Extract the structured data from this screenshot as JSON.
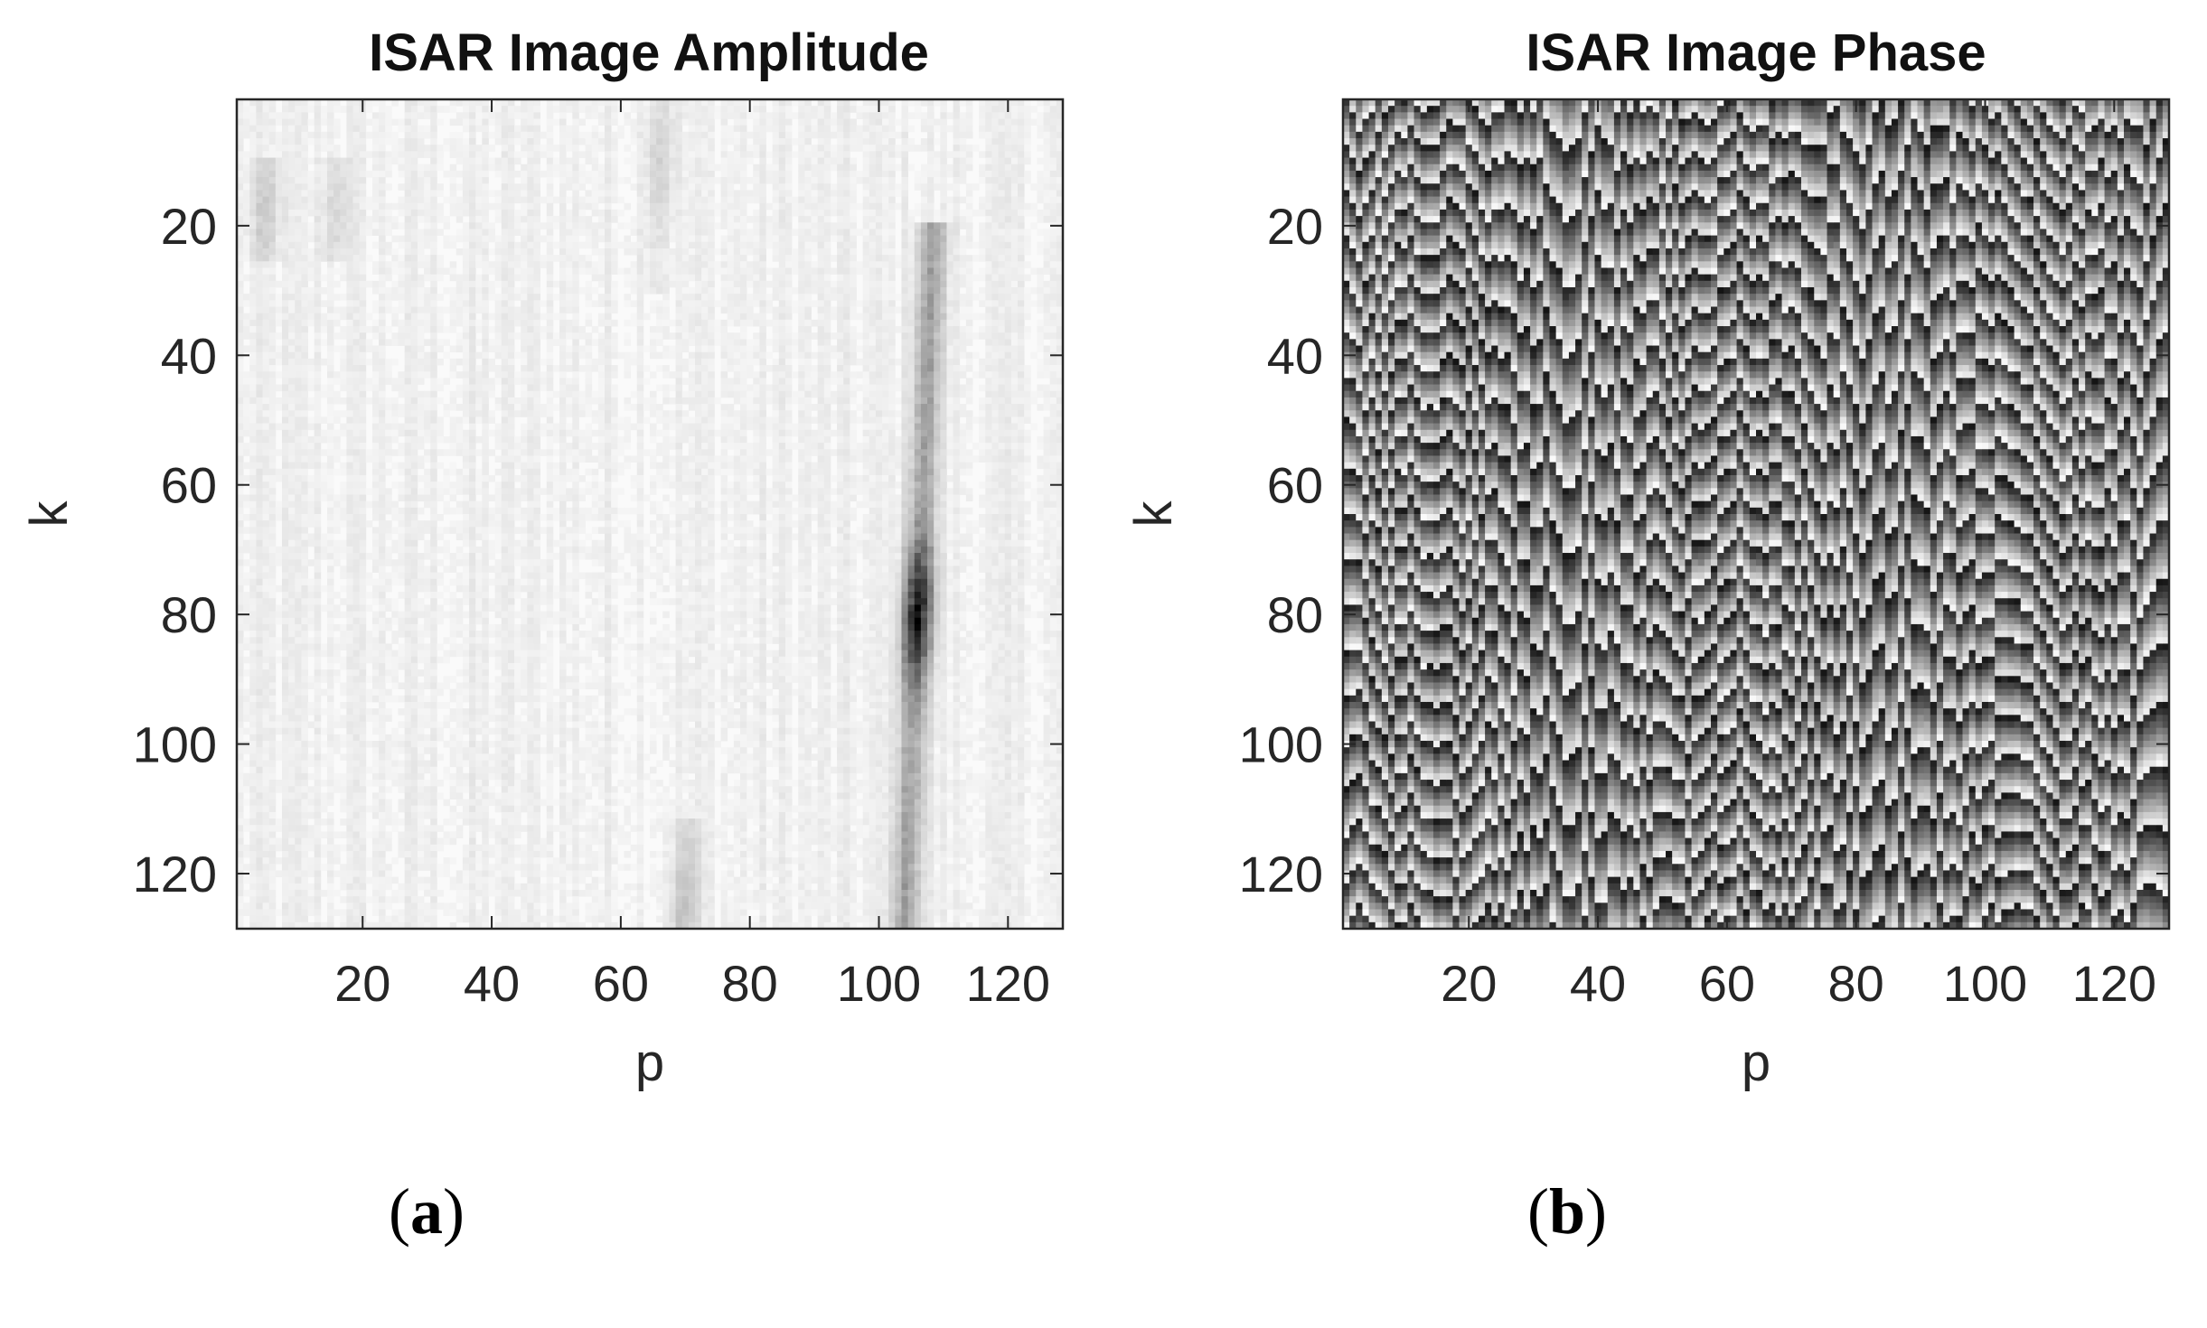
{
  "chart_data": [
    {
      "type": "heatmap",
      "panel_label": "a",
      "title": "ISAR Image Amplitude",
      "xlabel": "p",
      "ylabel": "k",
      "xlim": [
        1,
        128
      ],
      "ylim": [
        1,
        128
      ],
      "y_reversed": true,
      "x_ticks": [
        20,
        40,
        60,
        80,
        100,
        120
      ],
      "y_ticks": [
        20,
        40,
        60,
        80,
        100,
        120
      ],
      "colormap": "gray-inverted",
      "grid": false,
      "features": [
        {
          "p": 106,
          "k_center": 80,
          "k_extent": [
            20,
            128
          ],
          "strength": 1.0
        },
        {
          "p": 66,
          "k_center": 10,
          "k_extent": [
            1,
            30
          ],
          "strength": 0.15
        },
        {
          "p": 70,
          "k_center": 124,
          "k_extent": [
            112,
            128
          ],
          "strength": 0.2
        },
        {
          "p": 5,
          "k_center": 17,
          "k_extent": [
            10,
            25
          ],
          "strength": 0.15
        },
        {
          "p": 16,
          "k_center": 17,
          "k_extent": [
            10,
            25
          ],
          "strength": 0.12
        }
      ]
    },
    {
      "type": "heatmap",
      "panel_label": "b",
      "title": "ISAR Image Phase",
      "xlabel": "p",
      "ylabel": "k",
      "xlim": [
        1,
        128
      ],
      "ylim": [
        1,
        128
      ],
      "y_reversed": true,
      "x_ticks": [
        20,
        40,
        60,
        80,
        100,
        120
      ],
      "y_ticks": [
        20,
        40,
        60,
        80,
        100,
        120
      ],
      "colormap": "gray",
      "value_range": [
        -3.1416,
        3.1416
      ],
      "grid": false
    }
  ]
}
